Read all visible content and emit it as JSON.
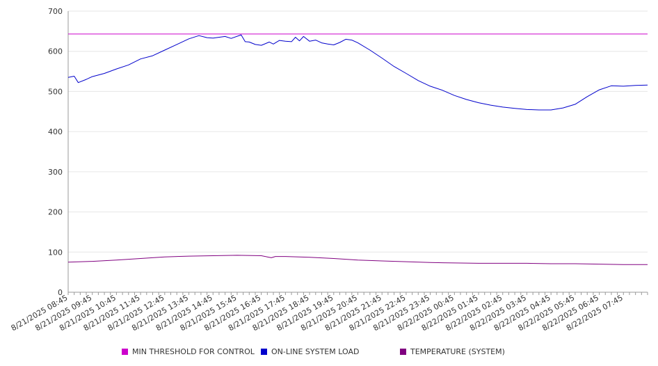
{
  "chart_data": {
    "type": "line",
    "title": "",
    "xlabel": "",
    "ylabel": "",
    "ylim": [
      0,
      700
    ],
    "yticks": [
      0,
      100,
      200,
      300,
      400,
      500,
      600,
      700
    ],
    "grid": true,
    "legend_position": "bottom",
    "x_tick_labels": [
      "8/21/2025 08:45",
      "8/21/2025 09:45",
      "8/21/2025 10:45",
      "8/21/2025 11:45",
      "8/21/2025 12:45",
      "8/21/2025 13:45",
      "8/21/2025 14:45",
      "8/21/2025 15:45",
      "8/21/2025 16:45",
      "8/21/2025 17:45",
      "8/21/2025 18:45",
      "8/21/2025 19:45",
      "8/21/2025 20:45",
      "8/21/2025 21:45",
      "8/21/2025 22:45",
      "8/21/2025 23:45",
      "8/22/2025 00:45",
      "8/22/2025 01:45",
      "8/22/2025 02:45",
      "8/22/2025 03:45",
      "8/22/2025 04:45",
      "8/22/2025 05:45",
      "8/22/2025 06:45",
      "8/22/2025 07:45"
    ],
    "x_range": [
      "8/21/2025 08:45",
      "8/22/2025 08:45"
    ],
    "series": [
      {
        "name": "MIN THRESHOLD FOR CONTROL",
        "color": "#cc00cc",
        "points": [
          [
            "8/21/2025 08:45",
            643
          ],
          [
            "8/22/2025 08:45",
            643
          ]
        ]
      },
      {
        "name": "ON-LINE SYSTEM LOAD",
        "color": "#0000cc",
        "points": [
          [
            "8/21/2025 08:45",
            535
          ],
          [
            "8/21/2025 09:00",
            538
          ],
          [
            "8/21/2025 09:10",
            522
          ],
          [
            "8/21/2025 09:30",
            530
          ],
          [
            "8/21/2025 09:45",
            537
          ],
          [
            "8/21/2025 10:15",
            545
          ],
          [
            "8/21/2025 10:45",
            556
          ],
          [
            "8/21/2025 11:15",
            566
          ],
          [
            "8/21/2025 11:45",
            581
          ],
          [
            "8/21/2025 12:15",
            589
          ],
          [
            "8/21/2025 12:45",
            603
          ],
          [
            "8/21/2025 13:15",
            617
          ],
          [
            "8/21/2025 13:45",
            631
          ],
          [
            "8/21/2025 14:10",
            639
          ],
          [
            "8/21/2025 14:30",
            634
          ],
          [
            "8/21/2025 14:45",
            633
          ],
          [
            "8/21/2025 15:15",
            637
          ],
          [
            "8/21/2025 15:30",
            632
          ],
          [
            "8/21/2025 15:55",
            641
          ],
          [
            "8/21/2025 16:05",
            624
          ],
          [
            "8/21/2025 16:15",
            623
          ],
          [
            "8/21/2025 16:30",
            617
          ],
          [
            "8/21/2025 16:45",
            615
          ],
          [
            "8/21/2025 17:05",
            623
          ],
          [
            "8/21/2025 17:15",
            618
          ],
          [
            "8/21/2025 17:30",
            627
          ],
          [
            "8/21/2025 17:45",
            625
          ],
          [
            "8/21/2025 18:00",
            624
          ],
          [
            "8/21/2025 18:10",
            635
          ],
          [
            "8/21/2025 18:20",
            626
          ],
          [
            "8/21/2025 18:30",
            637
          ],
          [
            "8/21/2025 18:45",
            625
          ],
          [
            "8/21/2025 19:00",
            628
          ],
          [
            "8/21/2025 19:15",
            621
          ],
          [
            "8/21/2025 19:30",
            618
          ],
          [
            "8/21/2025 19:45",
            616
          ],
          [
            "8/21/2025 20:00",
            622
          ],
          [
            "8/21/2025 20:15",
            630
          ],
          [
            "8/21/2025 20:30",
            628
          ],
          [
            "8/21/2025 20:45",
            621
          ],
          [
            "8/21/2025 21:15",
            603
          ],
          [
            "8/21/2025 21:45",
            583
          ],
          [
            "8/21/2025 22:15",
            562
          ],
          [
            "8/21/2025 22:45",
            545
          ],
          [
            "8/21/2025 23:15",
            527
          ],
          [
            "8/21/2025 23:45",
            513
          ],
          [
            "8/22/2025 00:15",
            503
          ],
          [
            "8/22/2025 00:45",
            490
          ],
          [
            "8/22/2025 01:15",
            480
          ],
          [
            "8/22/2025 01:45",
            472
          ],
          [
            "8/22/2025 02:15",
            466
          ],
          [
            "8/22/2025 02:45",
            461
          ],
          [
            "8/22/2025 03:15",
            458
          ],
          [
            "8/22/2025 03:45",
            455
          ],
          [
            "8/22/2025 04:15",
            454
          ],
          [
            "8/22/2025 04:45",
            454
          ],
          [
            "8/22/2025 05:15",
            459
          ],
          [
            "8/22/2025 05:45",
            468
          ],
          [
            "8/22/2025 06:15",
            487
          ],
          [
            "8/22/2025 06:45",
            504
          ],
          [
            "8/22/2025 07:15",
            514
          ],
          [
            "8/22/2025 07:45",
            513
          ],
          [
            "8/22/2025 08:15",
            515
          ],
          [
            "8/22/2025 08:45",
            516
          ]
        ]
      },
      {
        "name": "TEMPERATURE (SYSTEM)",
        "color": "#800080",
        "points": [
          [
            "8/21/2025 08:45",
            75
          ],
          [
            "8/21/2025 09:45",
            77
          ],
          [
            "8/21/2025 10:45",
            80
          ],
          [
            "8/21/2025 11:45",
            84
          ],
          [
            "8/21/2025 12:45",
            88
          ],
          [
            "8/21/2025 13:45",
            90
          ],
          [
            "8/21/2025 14:45",
            91
          ],
          [
            "8/21/2025 15:45",
            92
          ],
          [
            "8/21/2025 16:45",
            91
          ],
          [
            "8/21/2025 17:00",
            88
          ],
          [
            "8/21/2025 17:10",
            86
          ],
          [
            "8/21/2025 17:20",
            89
          ],
          [
            "8/21/2025 17:45",
            89
          ],
          [
            "8/21/2025 18:45",
            87
          ],
          [
            "8/21/2025 19:45",
            84
          ],
          [
            "8/21/2025 20:45",
            80
          ],
          [
            "8/21/2025 21:45",
            78
          ],
          [
            "8/21/2025 22:45",
            76
          ],
          [
            "8/21/2025 23:45",
            74
          ],
          [
            "8/22/2025 00:45",
            73
          ],
          [
            "8/22/2025 01:45",
            72
          ],
          [
            "8/22/2025 02:45",
            72
          ],
          [
            "8/22/2025 03:45",
            72
          ],
          [
            "8/22/2025 04:45",
            71
          ],
          [
            "8/22/2025 05:45",
            71
          ],
          [
            "8/22/2025 06:45",
            70
          ],
          [
            "8/22/2025 07:45",
            69
          ],
          [
            "8/22/2025 08:45",
            69
          ]
        ]
      }
    ]
  }
}
